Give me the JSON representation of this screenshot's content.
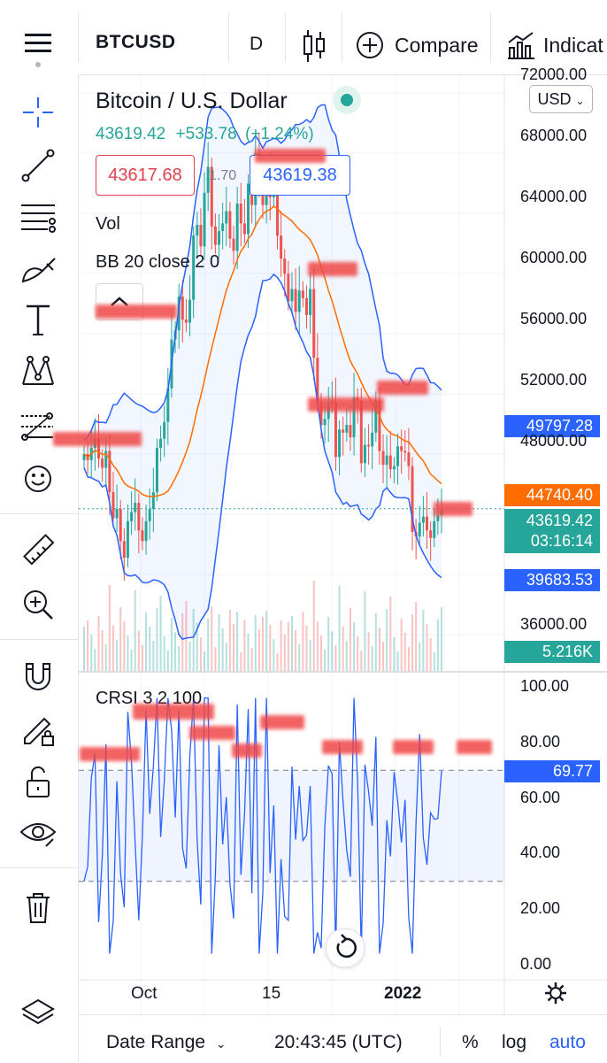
{
  "toolbar": {
    "symbol": "BTCUSD",
    "interval": "D",
    "compare_label": "Compare",
    "indicators_label": "Indicat"
  },
  "legend": {
    "title": "Bitcoin / U.S. Dollar",
    "last": "43619.42",
    "change": "+533.78",
    "change_pct": "(+1.24%)",
    "sell_price": "43617.68",
    "spread": "1.70",
    "buy_price": "43619.38",
    "vol_label": "Vol",
    "bb_label": "BB 20 close 2 0",
    "crsi_label": "CRSI 3 2 100"
  },
  "currency": "USD",
  "price_axis": {
    "ticks": [
      "72000.00",
      "68000.00",
      "64000.00",
      "60000.00",
      "56000.00",
      "52000.00",
      "48000.00",
      "36000.00"
    ],
    "labels": {
      "bb_upper": "49797.28",
      "bb_basis": "44740.40",
      "last_price": "43619.42",
      "countdown": "03:16:14",
      "bb_lower": "39683.53",
      "volume": "5.216K"
    }
  },
  "crsi_axis": {
    "ticks": [
      "100.00",
      "80.00",
      "60.00",
      "40.00",
      "20.00",
      "0.00"
    ],
    "current": "69.77"
  },
  "time_axis": [
    "Oct",
    "15",
    "2022"
  ],
  "bottom": {
    "date_range": "Date Range",
    "clock": "20:43:45 (UTC)",
    "pct": "%",
    "log": "log",
    "auto": "auto"
  },
  "colors": {
    "up": "#26a69a",
    "down": "#ef5350",
    "bb_band": "#2962ff",
    "bb_basis": "#ff6d00",
    "crsi_line": "#2962ff",
    "accent": "#2962ff"
  },
  "chart_data": {
    "type": "candlestick",
    "closes": [
      47200,
      46800,
      47600,
      48200,
      46900,
      46300,
      47400,
      44700,
      43000,
      43600,
      41500,
      40400,
      42800,
      43400,
      44000,
      42200,
      41500,
      42800,
      43600,
      44700,
      47600,
      48200,
      49300,
      51500,
      54700,
      55300,
      57500,
      56000,
      55800,
      57300,
      61500,
      62200,
      60800,
      64300,
      66000,
      62100,
      60900,
      61800,
      62300,
      63100,
      61300,
      60500,
      63600,
      62300,
      61600,
      64900,
      63500,
      66900,
      64600,
      63500,
      66100,
      64000,
      65100,
      61500,
      60000,
      59000,
      57200,
      58000,
      56500,
      57900,
      57400,
      56300,
      58000,
      53500,
      50600,
      49100,
      49500,
      50500,
      50600,
      47000,
      48800,
      48600,
      49100,
      48300,
      50900,
      50700,
      46600,
      47800,
      47700,
      48600,
      50700,
      47400,
      46500,
      47100,
      46200,
      46400,
      47700,
      47400,
      47300,
      46400,
      42100,
      41800,
      42700,
      43100,
      42200,
      41700,
      42800,
      43200,
      43600
    ],
    "y_range": [
      33000,
      72000
    ],
    "crsi_range": [
      0,
      100
    ],
    "crsi_bands": [
      30,
      70
    ]
  }
}
